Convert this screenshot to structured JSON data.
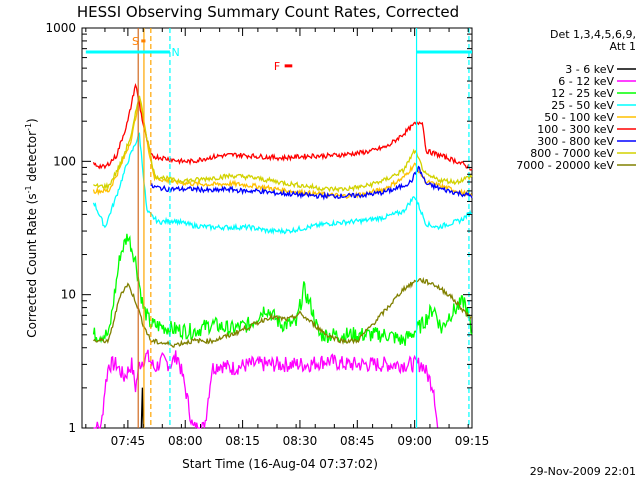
{
  "chart_data": {
    "type": "line",
    "title": "HESSI Observing Summary Count Rates, Corrected",
    "xlabel": "Start Time (16-Aug-04 07:37:02)",
    "ylabel": "Corrected Count Rate (s⁻¹ detector⁻¹)",
    "ylabel_base": "Corrected Count Rate (s",
    "ylabel_sup1": "-1",
    "ylabel_mid": " detector",
    "ylabel_sup2": "-1",
    "ylabel_end": ")",
    "yscale": "log",
    "ylim": [
      1,
      1000
    ],
    "xlim": [
      -4,
      98
    ],
    "x_units": "minutes after 07:37:02",
    "xticks": [
      {
        "x": 8,
        "label": "07:45"
      },
      {
        "x": 23,
        "label": "08:00"
      },
      {
        "x": 38,
        "label": "08:15"
      },
      {
        "x": 53,
        "label": "08:30"
      },
      {
        "x": 68,
        "label": "08:45"
      },
      {
        "x": 83,
        "label": "09:00"
      },
      {
        "x": 98,
        "label": "09:15"
      }
    ],
    "yticks": [
      {
        "y": 1,
        "label": "1"
      },
      {
        "y": 10,
        "label": "10"
      },
      {
        "y": 100,
        "label": "100"
      },
      {
        "y": 1000,
        "label": "1000"
      }
    ],
    "legend": {
      "header": [
        "Det 1,3,4,5,6,9,",
        "Att 1"
      ],
      "placement": "right"
    },
    "series": [
      {
        "name": "3 - 6 keV",
        "color": "#000000",
        "points": [
          [
            11.5,
            1
          ],
          [
            11.8,
            2
          ],
          [
            12.0,
            1
          ]
        ]
      },
      {
        "name": "6 - 12 keV",
        "color": "#ff00ff",
        "points": [
          [
            -1,
            1
          ],
          [
            1,
            1
          ],
          [
            2,
            2
          ],
          [
            3,
            3
          ],
          [
            5,
            3
          ],
          [
            7,
            2.4
          ],
          [
            9,
            3
          ],
          [
            10,
            2
          ],
          [
            11,
            3
          ],
          [
            13,
            3.5
          ],
          [
            15,
            2.8
          ],
          [
            17,
            3.2
          ],
          [
            19,
            3
          ],
          [
            21,
            3.5
          ],
          [
            23,
            2
          ],
          [
            25,
            1
          ],
          [
            28,
            1
          ],
          [
            30,
            2.8
          ],
          [
            32,
            3
          ],
          [
            35,
            2.8
          ],
          [
            40,
            3
          ],
          [
            45,
            3
          ],
          [
            50,
            3
          ],
          [
            55,
            3
          ],
          [
            60,
            3.2
          ],
          [
            65,
            3
          ],
          [
            70,
            3
          ],
          [
            75,
            3
          ],
          [
            80,
            3
          ],
          [
            85,
            3
          ],
          [
            88,
            2
          ],
          [
            89,
            1
          ]
        ]
      },
      {
        "name": "12 - 25 keV",
        "color": "#00ff00",
        "points": [
          [
            -1,
            5
          ],
          [
            3,
            5
          ],
          [
            6,
            20
          ],
          [
            8,
            28
          ],
          [
            10,
            18
          ],
          [
            12,
            8
          ],
          [
            14,
            6
          ],
          [
            20,
            5.5
          ],
          [
            25,
            5.3
          ],
          [
            30,
            6
          ],
          [
            35,
            5.5
          ],
          [
            40,
            6
          ],
          [
            44,
            8
          ],
          [
            48,
            6
          ],
          [
            52,
            6
          ],
          [
            54,
            11
          ],
          [
            56,
            8
          ],
          [
            58,
            5
          ],
          [
            64,
            5
          ],
          [
            70,
            5
          ],
          [
            76,
            5
          ],
          [
            80,
            4.5
          ],
          [
            82,
            5
          ],
          [
            85,
            6
          ],
          [
            88,
            8
          ],
          [
            90,
            5.5
          ],
          [
            92,
            7
          ],
          [
            96,
            9
          ],
          [
            98,
            5
          ]
        ]
      },
      {
        "name": "25 - 50 keV",
        "color": "#00ffff",
        "points": [
          [
            -1,
            50
          ],
          [
            2,
            32
          ],
          [
            5,
            55
          ],
          [
            8,
            100
          ],
          [
            11,
            160
          ],
          [
            13,
            42
          ],
          [
            16,
            35
          ],
          [
            20,
            36
          ],
          [
            25,
            33
          ],
          [
            30,
            32
          ],
          [
            35,
            32
          ],
          [
            40,
            32
          ],
          [
            45,
            30
          ],
          [
            50,
            30
          ],
          [
            55,
            32
          ],
          [
            60,
            34
          ],
          [
            65,
            35
          ],
          [
            70,
            36
          ],
          [
            75,
            38
          ],
          [
            80,
            42
          ],
          [
            83,
            55
          ],
          [
            86,
            34
          ],
          [
            89,
            32
          ],
          [
            92,
            34
          ],
          [
            95,
            36
          ],
          [
            98,
            42
          ]
        ]
      },
      {
        "name": "50 - 100 keV",
        "color": "#ffc000",
        "points": [
          [
            -1,
            60
          ],
          [
            3,
            60
          ],
          [
            6,
            90
          ],
          [
            9,
            150
          ],
          [
            11,
            300
          ],
          [
            13,
            140
          ],
          [
            15,
            75
          ],
          [
            20,
            70
          ],
          [
            25,
            68
          ],
          [
            30,
            67
          ],
          [
            35,
            68
          ],
          [
            40,
            66
          ],
          [
            45,
            63
          ],
          [
            50,
            60
          ],
          [
            55,
            58
          ],
          [
            60,
            56
          ],
          [
            65,
            55
          ],
          [
            70,
            57
          ],
          [
            75,
            62
          ],
          [
            80,
            75
          ],
          [
            83,
            95
          ],
          [
            86,
            70
          ],
          [
            90,
            65
          ],
          [
            94,
            60
          ],
          [
            98,
            55
          ]
        ]
      },
      {
        "name": "100 - 300 keV",
        "color": "#ff0000",
        "points": [
          [
            -1,
            95
          ],
          [
            2,
            90
          ],
          [
            5,
            110
          ],
          [
            8,
            200
          ],
          [
            10,
            380
          ],
          [
            12,
            190
          ],
          [
            14,
            110
          ],
          [
            18,
            105
          ],
          [
            22,
            100
          ],
          [
            25,
            100
          ],
          [
            28,
            105
          ],
          [
            32,
            110
          ],
          [
            36,
            112
          ],
          [
            40,
            110
          ],
          [
            44,
            108
          ],
          [
            48,
            106
          ],
          [
            52,
            108
          ],
          [
            56,
            110
          ],
          [
            60,
            110
          ],
          [
            64,
            112
          ],
          [
            68,
            115
          ],
          [
            72,
            120
          ],
          [
            76,
            130
          ],
          [
            80,
            160
          ],
          [
            83,
            190
          ],
          [
            85,
            200
          ],
          [
            86,
            120
          ],
          [
            90,
            110
          ],
          [
            94,
            100
          ],
          [
            98,
            88
          ]
        ]
      },
      {
        "name": "300 - 800 keV",
        "color": "#0000ff",
        "points": [
          [
            14,
            65
          ],
          [
            18,
            62
          ],
          [
            22,
            62
          ],
          [
            26,
            62
          ],
          [
            30,
            60
          ],
          [
            34,
            62
          ],
          [
            38,
            60
          ],
          [
            42,
            60
          ],
          [
            46,
            58
          ],
          [
            50,
            57
          ],
          [
            54,
            56
          ],
          [
            58,
            55
          ],
          [
            62,
            55
          ],
          [
            66,
            55
          ],
          [
            70,
            56
          ],
          [
            74,
            58
          ],
          [
            78,
            62
          ],
          [
            82,
            70
          ],
          [
            84,
            90
          ],
          [
            86,
            68
          ],
          [
            90,
            62
          ],
          [
            94,
            58
          ],
          [
            98,
            55
          ]
        ]
      },
      {
        "name": "800 - 7000 keV",
        "color": "#d2d200",
        "points": [
          [
            -1,
            65
          ],
          [
            3,
            65
          ],
          [
            6,
            95
          ],
          [
            9,
            160
          ],
          [
            11,
            320
          ],
          [
            13,
            150
          ],
          [
            15,
            78
          ],
          [
            20,
            72
          ],
          [
            25,
            72
          ],
          [
            30,
            75
          ],
          [
            35,
            78
          ],
          [
            40,
            76
          ],
          [
            45,
            72
          ],
          [
            50,
            68
          ],
          [
            55,
            65
          ],
          [
            60,
            62
          ],
          [
            65,
            62
          ],
          [
            70,
            65
          ],
          [
            75,
            72
          ],
          [
            80,
            85
          ],
          [
            83,
            120
          ],
          [
            86,
            78
          ],
          [
            90,
            72
          ],
          [
            94,
            70
          ],
          [
            98,
            78
          ]
        ]
      },
      {
        "name": "7000 - 20000 keV",
        "color": "#808000",
        "points": [
          [
            -1,
            4.5
          ],
          [
            3,
            4.5
          ],
          [
            6,
            10
          ],
          [
            8,
            12
          ],
          [
            10,
            9
          ],
          [
            12,
            6
          ],
          [
            14,
            4.5
          ],
          [
            20,
            4.2
          ],
          [
            25,
            4.5
          ],
          [
            30,
            4.5
          ],
          [
            35,
            5
          ],
          [
            40,
            5.8
          ],
          [
            45,
            6.8
          ],
          [
            50,
            6.5
          ],
          [
            53,
            7.2
          ],
          [
            56,
            6.2
          ],
          [
            60,
            5
          ],
          [
            64,
            4.5
          ],
          [
            68,
            4.5
          ],
          [
            72,
            6
          ],
          [
            76,
            8
          ],
          [
            80,
            11
          ],
          [
            84,
            13
          ],
          [
            88,
            12
          ],
          [
            92,
            10
          ],
          [
            96,
            7.5
          ],
          [
            98,
            6.5
          ]
        ]
      }
    ],
    "vertical_lines": [
      {
        "x": 10.7,
        "color": "#d2691e",
        "style": "solid"
      },
      {
        "x": 12.2,
        "color": "#ffa500",
        "style": "solid"
      },
      {
        "x": 14.0,
        "color": "#ffa500",
        "style": "dashed"
      },
      {
        "x": 19.0,
        "color": "#00ffff",
        "style": "dashed"
      },
      {
        "x": 83.5,
        "color": "#00ffff",
        "style": "solid"
      },
      {
        "x": 97.2,
        "color": "#00ffff",
        "style": "dashed"
      }
    ],
    "flag_bars": [
      {
        "x_start": -3,
        "x_end": 19,
        "y": 660,
        "color": "#00ffff"
      },
      {
        "x_start": 83.5,
        "x_end": 98,
        "y": 660,
        "color": "#00ffff"
      },
      {
        "x_start": 11.5,
        "x_end": 12.6,
        "y": 800,
        "color": "#ff8000"
      },
      {
        "x_start": 49,
        "x_end": 51,
        "y": 520,
        "color": "#ff0000"
      }
    ],
    "annotations": [
      {
        "text": "S",
        "x": 10.0,
        "y": 800,
        "color": "#ff8000"
      },
      {
        "text": "N",
        "x": 20.5,
        "y": 660,
        "color": "#00ffff"
      },
      {
        "text": "F",
        "x": 47.0,
        "y": 520,
        "color": "#ff0000"
      }
    ],
    "footer": "29-Nov-2009 22:01"
  }
}
